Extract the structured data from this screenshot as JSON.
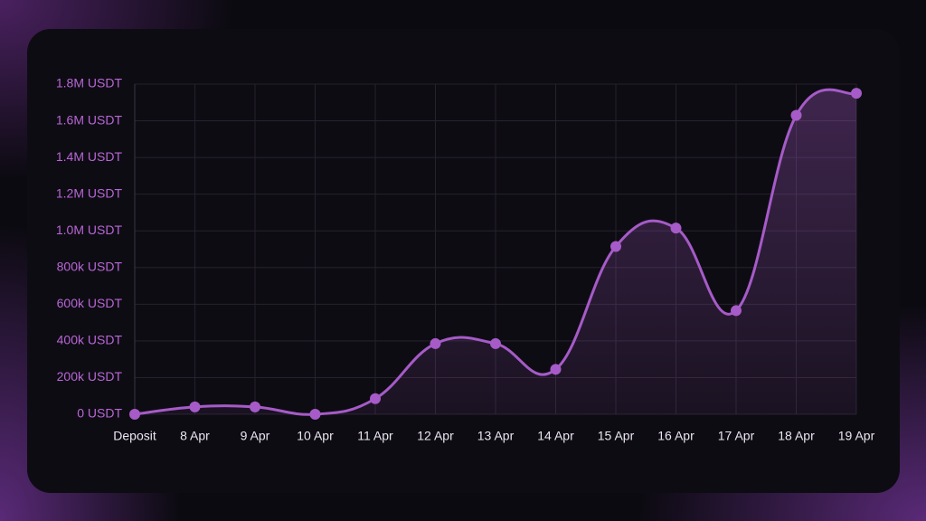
{
  "chart_data": {
    "type": "line",
    "categories": [
      "Deposit",
      "8 Apr",
      "9 Apr",
      "10 Apr",
      "11 Apr",
      "12 Apr",
      "13 Apr",
      "14 Apr",
      "15 Apr",
      "16 Apr",
      "17 Apr",
      "18 Apr",
      "19 Apr"
    ],
    "values": [
      0,
      40000,
      40000,
      0,
      85000,
      385000,
      385000,
      245000,
      915000,
      1015000,
      565000,
      1630000,
      1750000
    ],
    "color": "#a65bc8",
    "ylim": [
      0,
      1800000
    ],
    "yticks": [
      {
        "value": 0,
        "label": "0 USDT"
      },
      {
        "value": 200000,
        "label": "200k USDT"
      },
      {
        "value": 400000,
        "label": "400k USDT"
      },
      {
        "value": 600000,
        "label": "600k USDT"
      },
      {
        "value": 800000,
        "label": "800k USDT"
      },
      {
        "value": 1000000,
        "label": "1.0M USDT"
      },
      {
        "value": 1200000,
        "label": "1.2M USDT"
      },
      {
        "value": 1400000,
        "label": "1.4M USDT"
      },
      {
        "value": 1600000,
        "label": "1.6M USDT"
      },
      {
        "value": 1800000,
        "label": "1.8M USDT"
      }
    ],
    "grid": true
  }
}
